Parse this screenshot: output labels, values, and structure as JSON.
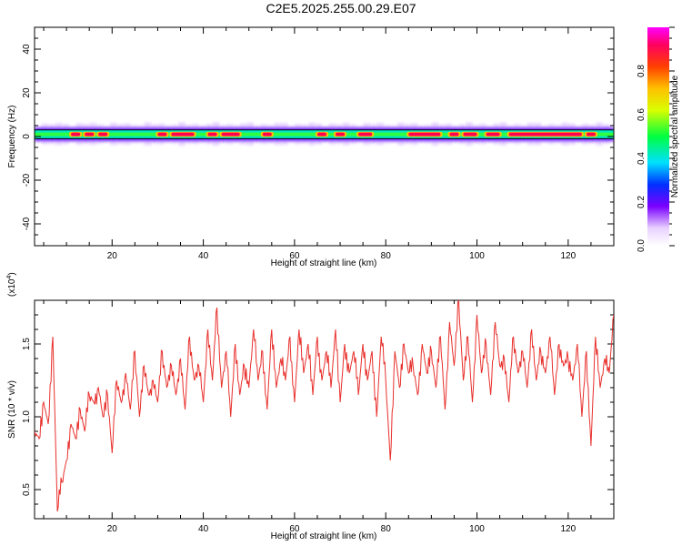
{
  "title": "C2E5.2025.255.00.29.E07",
  "colors": {
    "snr_line": "#e8302c",
    "band_outline": "#000000"
  },
  "chart_data": [
    {
      "type": "heatmap",
      "xlabel": "Height of straight line (km)",
      "ylabel": "Frequency (Hz)",
      "xlim": [
        3,
        130
      ],
      "ylim": [
        -50,
        50
      ],
      "x_ticks": [
        20,
        40,
        60,
        80,
        100,
        120
      ],
      "y_ticks": [
        -40,
        -20,
        0,
        20,
        40
      ],
      "band_center_hz": 1,
      "band_halfwidth_hz": 2,
      "colorbar": {
        "label": "Normalized spectral amplitude",
        "range": [
          0,
          1
        ],
        "ticks": [
          0.0,
          0.2,
          0.4,
          0.6,
          0.8
        ],
        "tick_labels": [
          "0.0",
          "0.2",
          "0.4",
          "0.6",
          "0.8"
        ]
      },
      "peak_segments_km": [
        [
          11,
          13
        ],
        [
          14,
          16
        ],
        [
          17,
          19
        ],
        [
          30,
          32
        ],
        [
          33,
          38
        ],
        [
          41,
          43
        ],
        [
          44,
          48
        ],
        [
          53,
          55
        ],
        [
          65,
          67
        ],
        [
          69,
          71
        ],
        [
          74,
          77
        ],
        [
          85,
          92
        ],
        [
          94,
          96
        ],
        [
          97,
          100
        ],
        [
          102,
          105
        ],
        [
          107,
          123
        ],
        [
          124,
          126
        ]
      ]
    },
    {
      "type": "line",
      "xlabel": "Height of straight line (km)",
      "ylabel": "SNR (10 * v/v)",
      "y_multiplier_label": "(x10",
      "y_multiplier_exp": "4",
      "y_multiplier_close": ")",
      "xlim": [
        3,
        130
      ],
      "ylim": [
        0.3,
        1.8
      ],
      "x_ticks": [
        20,
        40,
        60,
        80,
        100,
        120
      ],
      "y_ticks": [
        0.5,
        1.0,
        1.5
      ],
      "y_tick_labels": [
        "0.5",
        "1.0",
        "1.5"
      ],
      "series": [
        {
          "x": [
            3,
            4,
            5,
            6,
            7,
            8,
            9,
            10,
            11,
            12,
            13,
            14,
            15,
            16,
            17,
            18,
            19,
            20,
            21,
            22,
            23,
            24,
            25,
            26,
            27,
            28,
            29,
            30,
            31,
            32,
            33,
            34,
            35,
            36,
            37,
            38,
            39,
            40,
            41,
            42,
            43,
            44,
            45,
            46,
            47,
            48,
            49,
            50,
            51,
            52,
            53,
            54,
            55,
            56,
            57,
            58,
            59,
            60,
            61,
            62,
            63,
            64,
            65,
            66,
            67,
            68,
            69,
            70,
            71,
            72,
            73,
            74,
            75,
            76,
            77,
            78,
            79,
            80,
            81,
            82,
            83,
            84,
            85,
            86,
            87,
            88,
            89,
            90,
            91,
            92,
            93,
            94,
            95,
            96,
            97,
            98,
            99,
            100,
            101,
            102,
            103,
            104,
            105,
            106,
            107,
            108,
            109,
            110,
            111,
            112,
            113,
            114,
            115,
            116,
            117,
            118,
            119,
            120,
            121,
            122,
            123,
            124,
            125,
            126,
            127,
            128,
            129,
            130
          ],
          "values": [
            0.9,
            0.85,
            1.1,
            0.95,
            1.55,
            0.35,
            0.55,
            0.7,
            0.95,
            0.85,
            1.05,
            0.9,
            1.15,
            1.1,
            1.2,
            1.0,
            1.15,
            0.75,
            1.25,
            1.1,
            1.3,
            1.05,
            1.45,
            1.0,
            1.35,
            1.15,
            1.25,
            1.1,
            1.45,
            1.2,
            1.35,
            1.15,
            1.4,
            1.05,
            1.55,
            1.25,
            1.35,
            1.1,
            1.6,
            1.25,
            1.75,
            1.2,
            1.45,
            1.0,
            1.5,
            1.15,
            1.35,
            1.2,
            1.6,
            1.25,
            1.45,
            1.05,
            1.6,
            1.2,
            1.4,
            1.25,
            1.55,
            1.1,
            1.6,
            1.3,
            1.5,
            1.15,
            1.55,
            1.25,
            1.45,
            1.2,
            1.6,
            1.1,
            1.5,
            1.3,
            1.45,
            1.15,
            1.5,
            1.25,
            1.45,
            1.0,
            1.55,
            1.25,
            0.7,
            1.45,
            1.2,
            1.5,
            1.3,
            1.35,
            1.15,
            1.5,
            1.3,
            1.45,
            1.2,
            1.55,
            1.05,
            1.65,
            1.35,
            1.8,
            1.25,
            1.55,
            1.1,
            1.7,
            1.3,
            1.5,
            1.15,
            1.65,
            1.35,
            1.4,
            1.1,
            1.55,
            1.3,
            1.45,
            1.2,
            1.6,
            1.25,
            1.45,
            1.3,
            1.55,
            1.15,
            1.5,
            1.35,
            1.4,
            1.25,
            1.5,
            1.0,
            1.45,
            0.8,
            1.55,
            1.2,
            1.4,
            1.3,
            1.7
          ]
        }
      ]
    }
  ]
}
